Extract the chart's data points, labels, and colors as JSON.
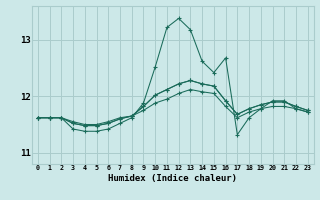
{
  "title": "",
  "xlabel": "Humidex (Indice chaleur)",
  "background_color": "#cce8e8",
  "grid_color": "#aacccc",
  "line_color": "#1a6b5a",
  "marker_color": "#1a6b5a",
  "xlim": [
    -0.5,
    23.5
  ],
  "ylim": [
    10.8,
    13.6
  ],
  "yticks": [
    11,
    12,
    13
  ],
  "xtick_labels": [
    "0",
    "1",
    "2",
    "3",
    "4",
    "5",
    "6",
    "7",
    "8",
    "9",
    "10",
    "11",
    "12",
    "13",
    "14",
    "15",
    "16",
    "17",
    "18",
    "19",
    "20",
    "21",
    "22",
    "23"
  ],
  "series": [
    [
      11.62,
      11.62,
      11.62,
      11.55,
      11.5,
      11.5,
      11.55,
      11.62,
      11.65,
      11.75,
      11.88,
      11.95,
      12.05,
      12.12,
      12.08,
      12.05,
      11.82,
      11.62,
      11.72,
      11.78,
      11.82,
      11.82,
      11.78,
      11.72
    ],
    [
      11.62,
      11.62,
      11.62,
      11.42,
      11.38,
      11.38,
      11.42,
      11.52,
      11.62,
      11.88,
      12.52,
      13.22,
      13.38,
      13.18,
      12.62,
      12.42,
      12.68,
      11.32,
      11.62,
      11.78,
      11.92,
      11.92,
      11.78,
      11.72
    ],
    [
      11.62,
      11.62,
      11.62,
      11.52,
      11.48,
      11.48,
      11.52,
      11.6,
      11.65,
      11.82,
      12.02,
      12.12,
      12.22,
      12.28,
      12.22,
      12.18,
      11.92,
      11.68,
      11.78,
      11.85,
      11.9,
      11.9,
      11.82,
      11.75
    ],
    [
      11.62,
      11.62,
      11.62,
      11.52,
      11.48,
      11.48,
      11.52,
      11.6,
      11.65,
      11.82,
      12.02,
      12.12,
      12.22,
      12.28,
      12.22,
      12.18,
      11.92,
      11.68,
      11.78,
      11.85,
      11.9,
      11.9,
      11.82,
      11.75
    ]
  ]
}
